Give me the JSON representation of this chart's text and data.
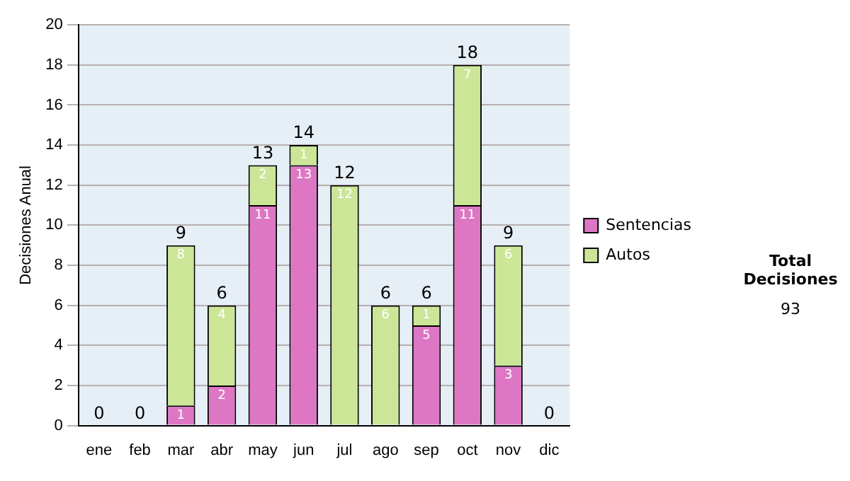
{
  "chart_data": {
    "type": "bar",
    "stacked": true,
    "ylabel": "Decisiones Anual",
    "categories": [
      "ene",
      "feb",
      "mar",
      "abr",
      "may",
      "jun",
      "jul",
      "ago",
      "sep",
      "oct",
      "nov",
      "dic"
    ],
    "series": [
      {
        "name": "Sentencias",
        "color": "#dd77c4",
        "values": [
          0,
          0,
          1,
          2,
          11,
          13,
          0,
          0,
          5,
          11,
          3,
          0
        ],
        "value_labels": [
          null,
          null,
          "1",
          "2",
          "11",
          "13",
          null,
          null,
          "5",
          "11",
          "3",
          null
        ]
      },
      {
        "name": "Autos",
        "color": "#cce697",
        "values": [
          0,
          0,
          8,
          4,
          2,
          1,
          12,
          6,
          1,
          7,
          6,
          0
        ],
        "value_labels": [
          null,
          null,
          "8",
          "4",
          "2",
          "1",
          "12",
          "6",
          "1",
          "7",
          "6",
          null
        ]
      }
    ],
    "totals": [
      "0",
      "0",
      "9",
      "6",
      "13",
      "14",
      "12",
      "6",
      "6",
      "18",
      "9",
      "0"
    ],
    "ylim": [
      0,
      20
    ],
    "yticks": [
      0,
      2,
      4,
      6,
      8,
      10,
      12,
      14,
      16,
      18,
      20
    ],
    "grid": "y",
    "legend": "right",
    "annotations": [
      "Total Decisiones",
      "93"
    ]
  }
}
